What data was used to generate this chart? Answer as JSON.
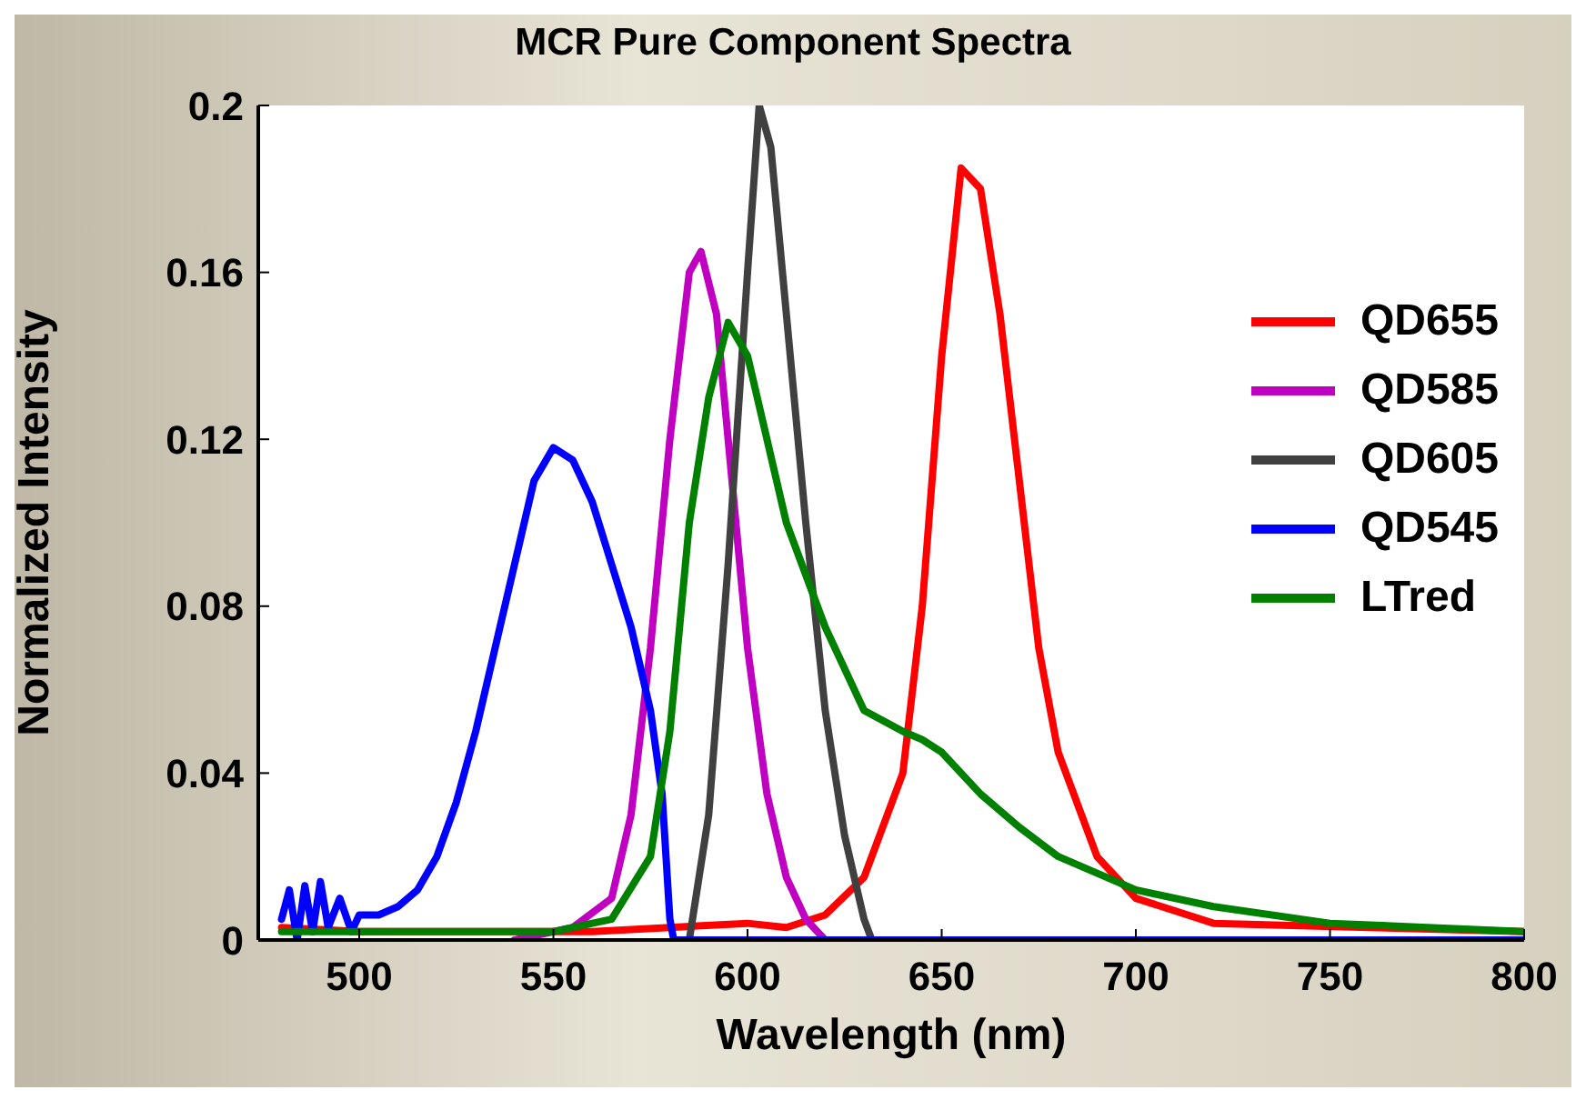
{
  "chart_data": {
    "type": "line",
    "title": "MCR Pure Component Spectra",
    "xlabel": "Wavelength (nm)",
    "ylabel": "Normalized Intensity",
    "xlim": [
      474,
      800
    ],
    "xticks": [
      500,
      550,
      600,
      650,
      700,
      750,
      800
    ],
    "ylim": [
      0,
      0.2
    ],
    "yticks": [
      0,
      0.04,
      0.08,
      0.12,
      0.16,
      0.2
    ],
    "grid": false,
    "legend": "right",
    "marker": "none",
    "line_style": "solid",
    "series": [
      {
        "name": "QD655",
        "color": "#ff0000",
        "x": [
          480,
          500,
          560,
          580,
          600,
          610,
          620,
          630,
          640,
          645,
          650,
          655,
          660,
          665,
          670,
          675,
          680,
          690,
          700,
          720,
          760,
          800
        ],
        "values": [
          0.003,
          0.002,
          0.002,
          0.003,
          0.004,
          0.003,
          0.006,
          0.015,
          0.04,
          0.08,
          0.14,
          0.185,
          0.18,
          0.15,
          0.11,
          0.07,
          0.045,
          0.02,
          0.01,
          0.004,
          0.003,
          0.002
        ]
      },
      {
        "name": "QD585",
        "color": "#c000c0",
        "x": [
          540,
          555,
          565,
          570,
          575,
          580,
          585,
          588,
          592,
          596,
          600,
          605,
          610,
          615,
          620,
          800
        ],
        "values": [
          0,
          0.003,
          0.01,
          0.03,
          0.07,
          0.12,
          0.16,
          0.165,
          0.15,
          0.11,
          0.07,
          0.035,
          0.015,
          0.005,
          0,
          0
        ]
      },
      {
        "name": "QD605",
        "color": "#404040",
        "x": [
          585,
          590,
          595,
          600,
          603,
          606,
          610,
          615,
          620,
          625,
          630,
          632,
          800
        ],
        "values": [
          0,
          0.03,
          0.09,
          0.16,
          0.2,
          0.19,
          0.15,
          0.1,
          0.055,
          0.025,
          0.005,
          0,
          0
        ]
      },
      {
        "name": "QD545",
        "color": "#0000ff",
        "x": [
          480,
          482,
          484,
          486,
          488,
          490,
          492,
          495,
          498,
          500,
          505,
          510,
          515,
          520,
          525,
          530,
          535,
          540,
          545,
          550,
          555,
          560,
          565,
          570,
          575,
          578,
          580,
          581,
          800
        ],
        "values": [
          0.005,
          0.012,
          0,
          0.013,
          0.002,
          0.014,
          0.003,
          0.01,
          0.002,
          0.006,
          0.006,
          0.008,
          0.012,
          0.02,
          0.033,
          0.05,
          0.07,
          0.09,
          0.11,
          0.118,
          0.115,
          0.105,
          0.09,
          0.075,
          0.055,
          0.035,
          0.005,
          0,
          0
        ]
      },
      {
        "name": "LTred",
        "color": "#008000",
        "x": [
          480,
          550,
          565,
          575,
          580,
          585,
          590,
          595,
          600,
          605,
          610,
          620,
          630,
          640,
          645,
          650,
          660,
          670,
          680,
          700,
          720,
          750,
          800
        ],
        "values": [
          0.002,
          0.002,
          0.005,
          0.02,
          0.05,
          0.1,
          0.13,
          0.148,
          0.14,
          0.12,
          0.1,
          0.075,
          0.055,
          0.05,
          0.048,
          0.045,
          0.035,
          0.027,
          0.02,
          0.012,
          0.008,
          0.004,
          0.002
        ]
      }
    ]
  }
}
